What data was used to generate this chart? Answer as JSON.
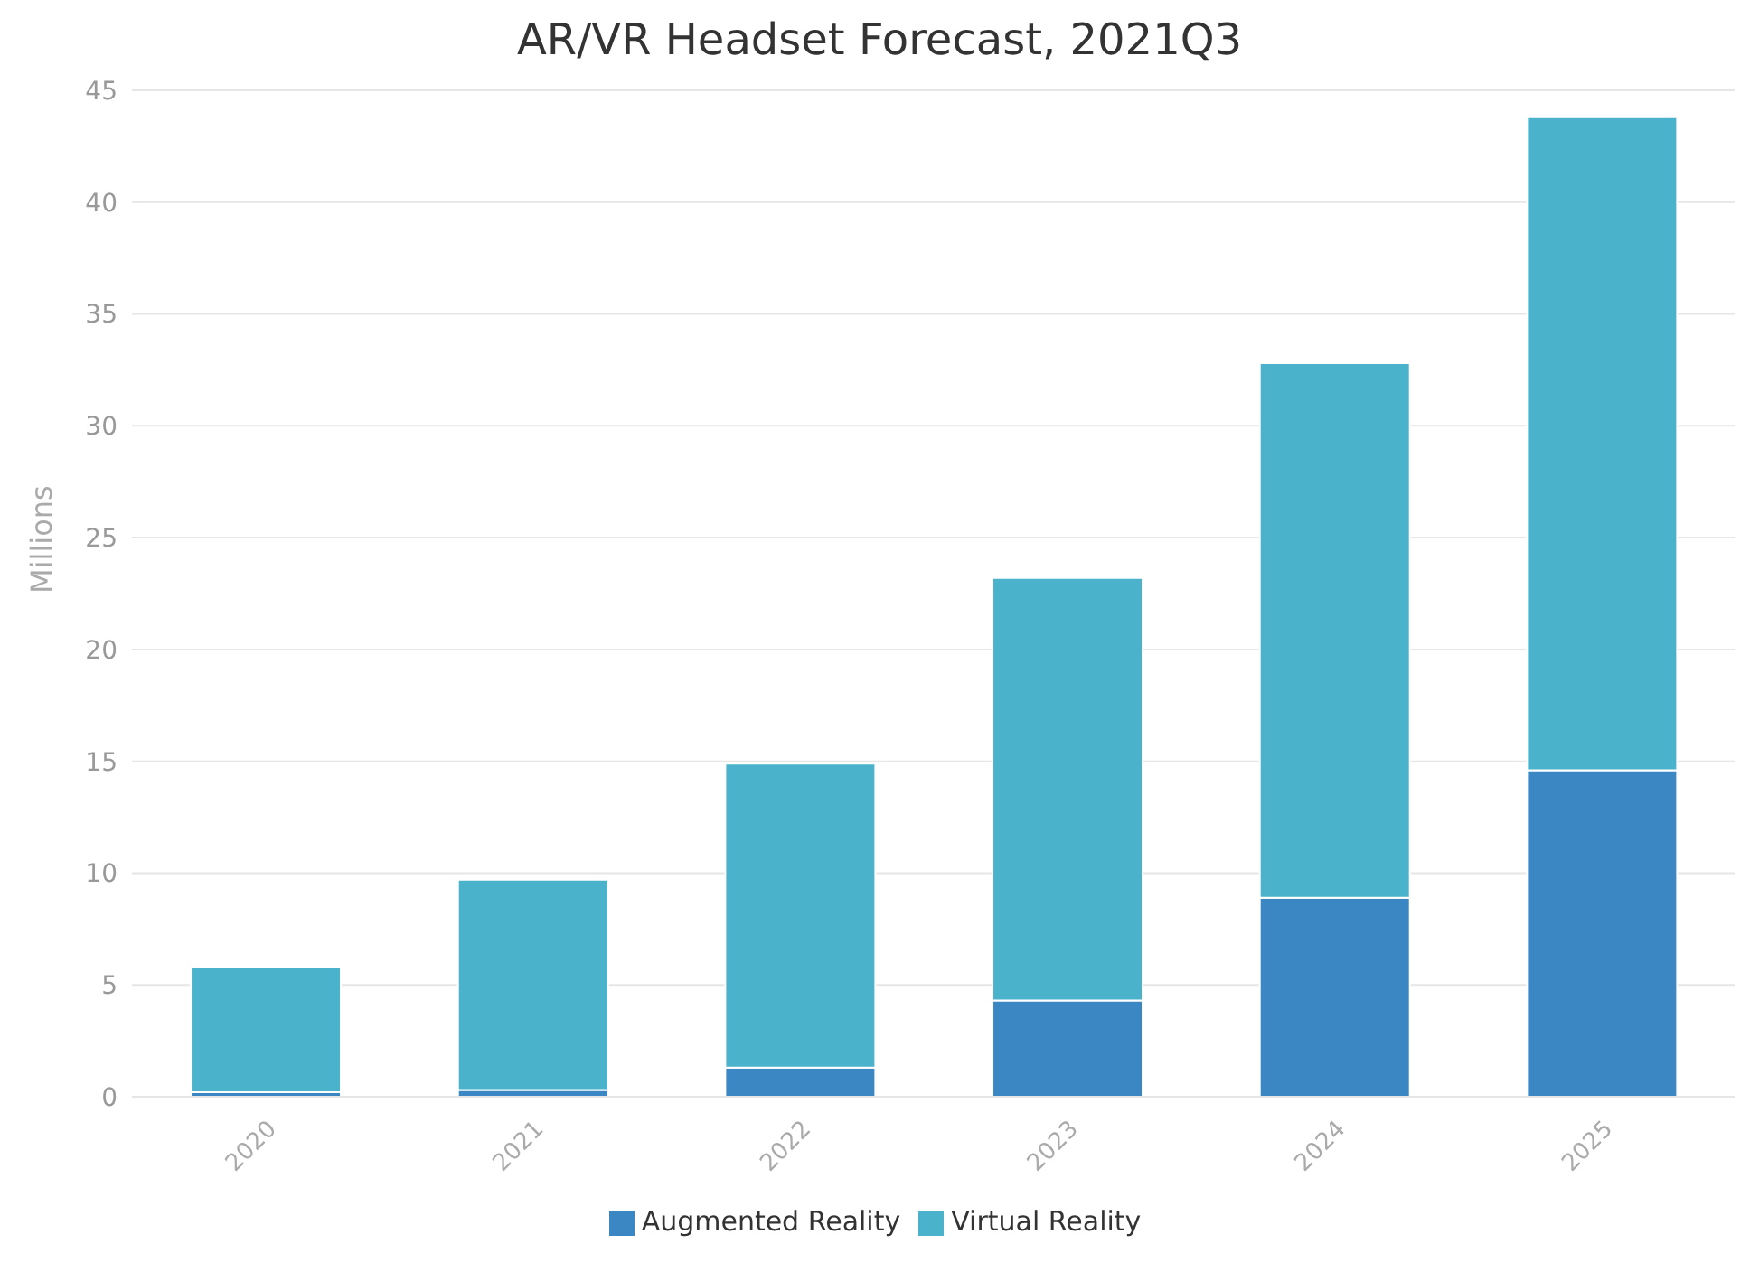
{
  "chart_data": {
    "type": "bar",
    "title": "AR/VR Headset Forecast, 2021Q3",
    "ylabel": "Millions",
    "categories": [
      "2020",
      "2021",
      "2022",
      "2023",
      "2024",
      "2025"
    ],
    "stacked": true,
    "series": [
      {
        "name": "Augmented Reality",
        "color": "#3a87c4",
        "values": [
          0.2,
          0.3,
          1.3,
          4.3,
          8.9,
          14.6
        ]
      },
      {
        "name": "Virtual Reality",
        "color": "#4ab3cb",
        "values": [
          5.6,
          9.4,
          13.6,
          18.9,
          23.9,
          29.2
        ]
      }
    ],
    "ylim": [
      0,
      45
    ],
    "yticks": [
      0,
      5,
      10,
      15,
      20,
      25,
      30,
      35,
      40,
      45
    ],
    "grid": "y",
    "legend": "bottom"
  }
}
